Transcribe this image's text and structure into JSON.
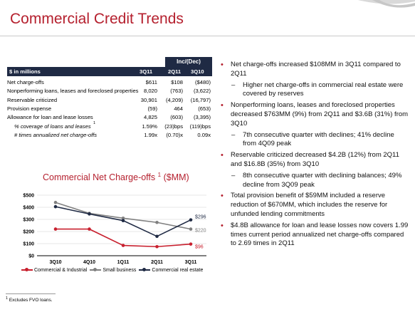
{
  "slide": {
    "title": "Commercial Credit Trends"
  },
  "colors": {
    "accent_red": "#b5202e",
    "header_navy": "#1f2a44",
    "ci": "#c8202e",
    "small_business": "#808080",
    "cre": "#1f2a44"
  },
  "table": {
    "group_header": "Inc/(Dec)",
    "col_label": "$ in millions",
    "columns": [
      "3Q11",
      "2Q11",
      "3Q10"
    ],
    "rows": [
      {
        "label": "Net charge-offs",
        "v": [
          "$611",
          "$108",
          "($480)"
        ],
        "italic": false
      },
      {
        "label": "Nonperforming loans, leases and foreclosed properties",
        "v": [
          "8,020",
          "(763)",
          "(3,622)"
        ],
        "italic": false
      },
      {
        "label": "Reservable criticized",
        "v": [
          "30,901",
          "(4,209)",
          "(16,797)"
        ],
        "italic": false
      },
      {
        "label": "Provision expense",
        "v": [
          "(59)",
          "464",
          "(653)"
        ],
        "italic": false
      },
      {
        "label": "Allowance for loan and lease losses",
        "v": [
          "4,825",
          "(603)",
          "(3,395)"
        ],
        "italic": false
      },
      {
        "label": "% coverage of loans and leases",
        "sup": "1",
        "v": [
          "1.59%",
          "(23)bps",
          "(119)bps"
        ],
        "italic": true
      },
      {
        "label": "# times annualized net charge-offs",
        "v": [
          "1.99x",
          "(0.70)x",
          "0.09x"
        ],
        "italic": true
      }
    ]
  },
  "bullets": [
    {
      "text": "Net charge-offs increased $108MM in 3Q11 compared to 2Q11",
      "subs": [
        "Higher net charge-offs in commercial real estate were covered by reserves"
      ]
    },
    {
      "text": "Nonperforming loans, leases and foreclosed properties decreased $763MM (9%) from 2Q11 and $3.6B (31%) from 3Q10",
      "subs": [
        "7th consecutive quarter with declines; 41% decline from 4Q09 peak"
      ]
    },
    {
      "text": "Reservable criticized decreased $4.2B (12%) from 2Q11 and $16.8B (35%) from 3Q10",
      "subs": [
        "8th consecutive quarter with declining balances; 49% decline from 3Q09 peak"
      ]
    },
    {
      "text": "Total provision benefit of $59MM included a reserve reduction of $670MM, which includes the reserve for unfunded lending commitments",
      "subs": []
    },
    {
      "text": "$4.8B allowance for loan and lease losses now covers 1.99 times current period annualized net charge-offs compared to 2.69 times in 2Q11",
      "subs": []
    }
  ],
  "chart_data": {
    "type": "line",
    "title": "Commercial Net Charge-offs",
    "title_sup": "1",
    "title_suffix": "($MM)",
    "categories": [
      "3Q10",
      "4Q10",
      "1Q11",
      "2Q11",
      "3Q11"
    ],
    "y_ticks": [
      "$0",
      "$100",
      "$200",
      "$300",
      "$400",
      "$500"
    ],
    "ylim": [
      0,
      500
    ],
    "series": [
      {
        "name": "Commercial & Industrial",
        "values": [
          220,
          220,
          85,
          75,
          96
        ],
        "end_label": "$96",
        "color": "#c8202e"
      },
      {
        "name": "Small business",
        "values": [
          440,
          350,
          310,
          275,
          220
        ],
        "end_label": "$220",
        "color": "#808080"
      },
      {
        "name": "Commercial real estate",
        "values": [
          405,
          345,
          290,
          160,
          296
        ],
        "end_label": "$296",
        "color": "#1f2a44"
      }
    ],
    "legend": "bottom"
  },
  "footnote": {
    "sup": "1",
    "text": "Excludes FVO loans."
  }
}
